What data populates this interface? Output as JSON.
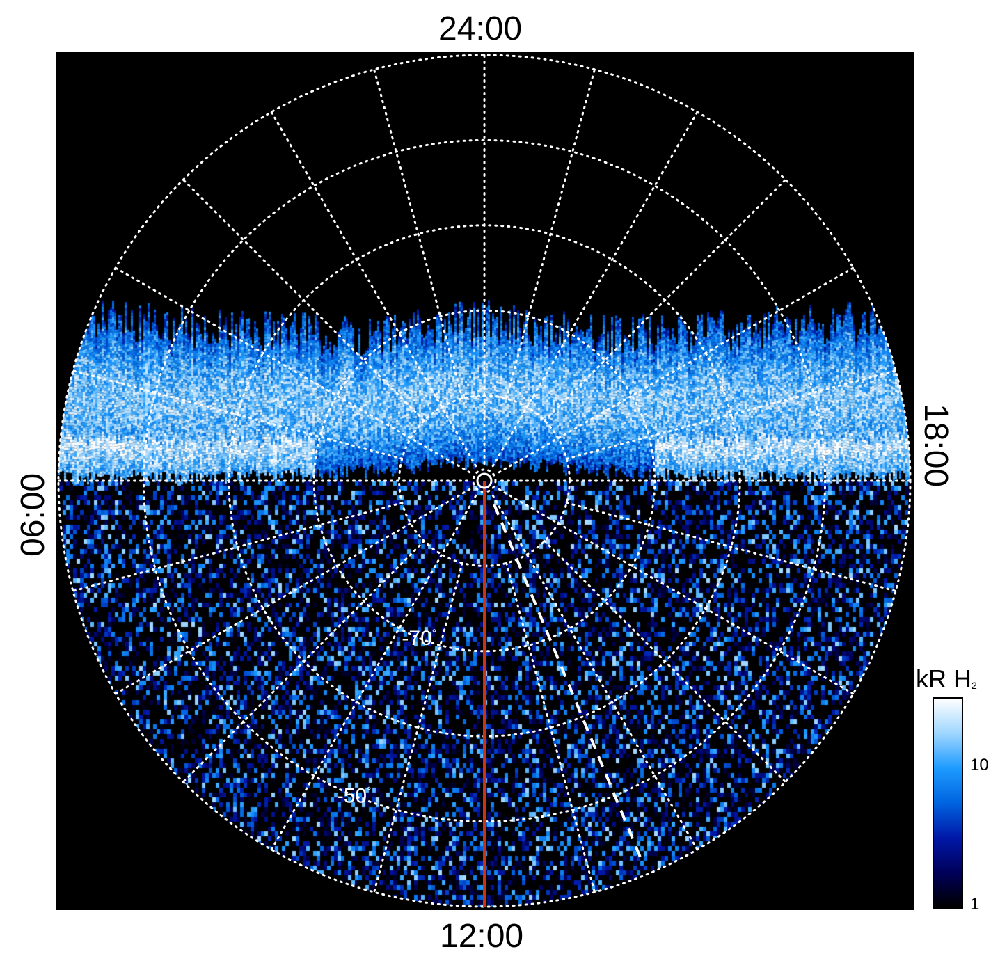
{
  "chart_data": {
    "type": "heatmap",
    "title": "",
    "projection": "polar",
    "local_time_labels": {
      "top": "24:00",
      "bottom": "12:00",
      "left": "06:00",
      "right": "18:00"
    },
    "latitude_labels": [
      {
        "text": "-70",
        "unit": "°",
        "latitude": -70,
        "local_time": "10:30"
      },
      {
        "text": "-50",
        "unit": "°",
        "latitude": -50,
        "local_time": "10:30"
      }
    ],
    "grid": true,
    "grid_latitudes": [
      -80,
      -70,
      -60,
      -50,
      -40
    ],
    "grid_local_time_step_hours": 2,
    "colorbar": {
      "title": "kR H",
      "title_subscript": "2",
      "scale": "log",
      "ticks": [
        {
          "value": 1,
          "label": "1"
        },
        {
          "value": 10,
          "label": "10"
        }
      ],
      "range": [
        1,
        30
      ],
      "colors": [
        "#000000",
        "#00005a",
        "#0018a8",
        "#0064e0",
        "#1e9bff",
        "#9fd6ff",
        "#ffffff"
      ]
    },
    "markers": {
      "pole_marker": "circle",
      "dashed_meridian_local_time": "10:30",
      "red_meridian_local_time": "12:00"
    },
    "background_color": "#000000",
    "red_line_color": "#cc3311"
  }
}
